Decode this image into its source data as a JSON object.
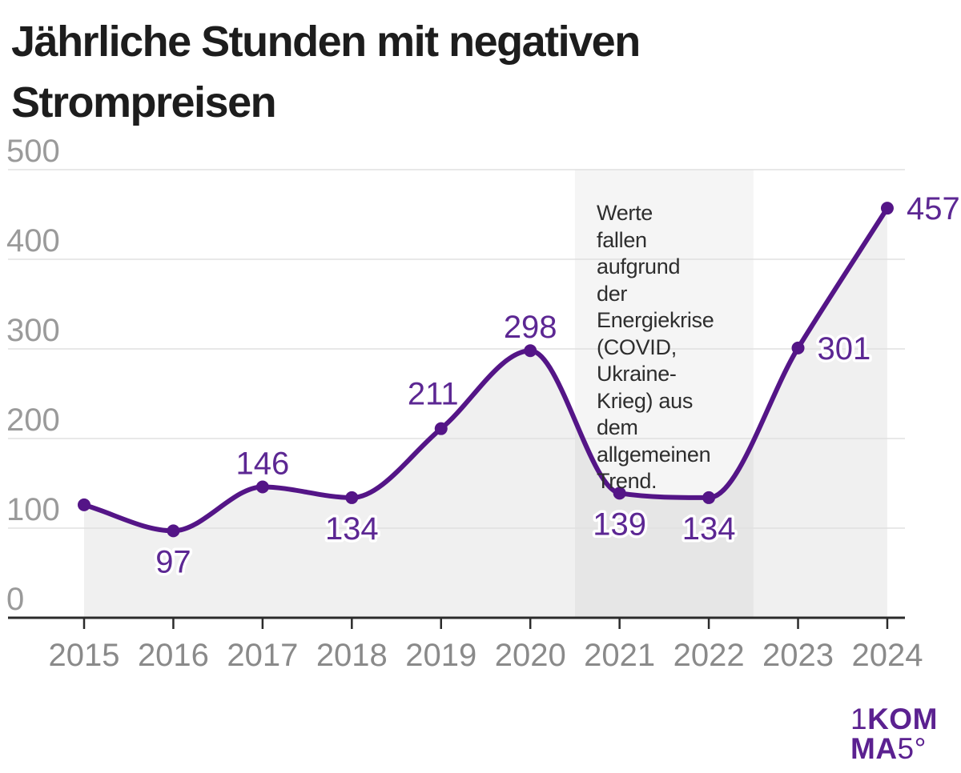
{
  "header": {
    "title_line1": "Jährliche Stunden mit negativen",
    "title_line2": "Strompreisen"
  },
  "chart_data": {
    "type": "line",
    "title": "Jährliche Stunden mit negativen Strompreisen",
    "categories": [
      "2015",
      "2016",
      "2017",
      "2018",
      "2019",
      "2020",
      "2021",
      "2022",
      "2023",
      "2024"
    ],
    "values": [
      126,
      97,
      146,
      134,
      211,
      298,
      139,
      134,
      301,
      457
    ],
    "point_labels": [
      "",
      "97",
      "146",
      "134",
      "211",
      "298",
      "139",
      "134",
      "301",
      "457"
    ],
    "label_positions": [
      "none",
      "below",
      "above",
      "below",
      "above-left",
      "above",
      "below",
      "below",
      "right",
      "right"
    ],
    "xlabel": "",
    "ylabel": "",
    "ylim": [
      0,
      500
    ],
    "yticks": [
      0,
      100,
      200,
      300,
      400,
      500
    ],
    "grid": true,
    "legend": false,
    "area_fill": true,
    "highlight_band": {
      "from_category": "2021",
      "to_category": "2022",
      "annotation_text": "Werte fallen aufgrund der Energiekrise (COVID, Ukraine-Krieg) aus dem allgemeinen Trend.",
      "annotation_lines": [
        "Werte",
        "fallen",
        "aufgrund",
        "der",
        "Energiekrise",
        "(COVID,",
        "Ukraine-",
        "Krieg) aus",
        "dem",
        "allgemeinen",
        "Trend."
      ]
    }
  },
  "colors": {
    "line": "#541587",
    "marker": "#541587",
    "data_label": "#5c2793",
    "band": "#f5f5f5",
    "area": "rgba(0,0,0,0.059)",
    "grid": "#e0e0e0",
    "axis": "#2b2b2b",
    "x_tick_label": "#8a8a8a",
    "y_tick_label": "#9a9a9a",
    "title": "#1d1d1d",
    "annotation": "#2e2e2e",
    "logo": "#5b2190",
    "background": "#ffffff"
  },
  "logo": {
    "line1": [
      {
        "text": "1",
        "bold": false
      },
      {
        "text": "KOM",
        "bold": true
      }
    ],
    "line2": [
      {
        "text": "MA",
        "bold": true
      },
      {
        "text": "5°",
        "bold": false
      }
    ]
  }
}
